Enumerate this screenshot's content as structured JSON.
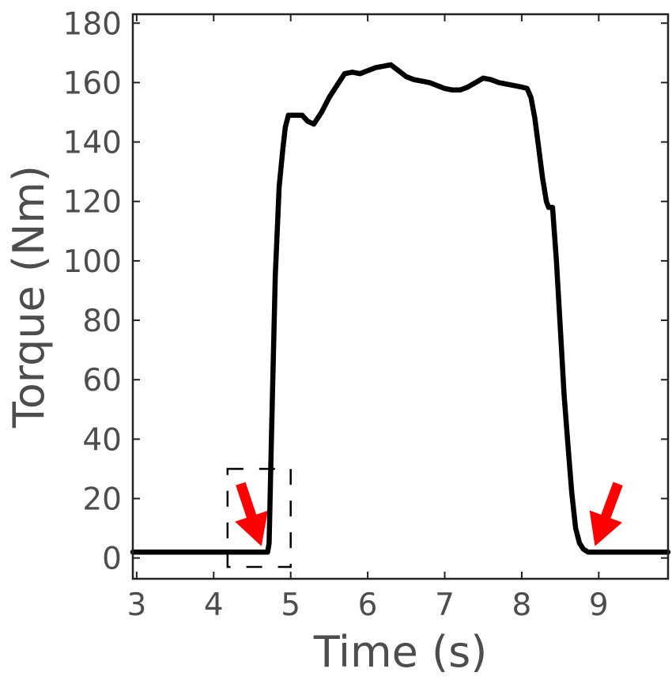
{
  "chart_data": {
    "type": "line",
    "title": "",
    "xlabel": "Time (s)",
    "ylabel": "Torque (Nm)",
    "xlim": [
      2.95,
      9.9
    ],
    "ylim": [
      -7,
      183
    ],
    "x_ticks": [
      3,
      4,
      5,
      6,
      7,
      8,
      9
    ],
    "y_ticks": [
      0,
      20,
      40,
      60,
      80,
      100,
      120,
      140,
      160,
      180
    ],
    "grid": false,
    "legend": "none",
    "series": [
      {
        "color": "#000000",
        "points": [
          [
            2.95,
            2
          ],
          [
            3.5,
            2
          ],
          [
            4.0,
            2
          ],
          [
            4.4,
            2
          ],
          [
            4.6,
            2
          ],
          [
            4.7,
            2
          ],
          [
            4.72,
            5
          ],
          [
            4.75,
            40
          ],
          [
            4.8,
            95
          ],
          [
            4.85,
            125
          ],
          [
            4.9,
            138
          ],
          [
            4.93,
            145
          ],
          [
            4.97,
            149
          ],
          [
            5.05,
            149
          ],
          [
            5.15,
            149
          ],
          [
            5.22,
            147
          ],
          [
            5.3,
            146
          ],
          [
            5.4,
            150
          ],
          [
            5.5,
            155
          ],
          [
            5.6,
            159
          ],
          [
            5.7,
            163
          ],
          [
            5.8,
            163.5
          ],
          [
            5.9,
            163
          ],
          [
            6.0,
            164
          ],
          [
            6.1,
            165
          ],
          [
            6.2,
            165.5
          ],
          [
            6.3,
            166
          ],
          [
            6.4,
            164
          ],
          [
            6.5,
            162
          ],
          [
            6.6,
            161
          ],
          [
            6.7,
            160.5
          ],
          [
            6.8,
            160
          ],
          [
            6.9,
            159
          ],
          [
            7.0,
            158
          ],
          [
            7.1,
            157.5
          ],
          [
            7.2,
            157.5
          ],
          [
            7.3,
            158.5
          ],
          [
            7.4,
            160
          ],
          [
            7.5,
            161.5
          ],
          [
            7.6,
            161
          ],
          [
            7.7,
            160
          ],
          [
            7.8,
            159.5
          ],
          [
            7.9,
            159
          ],
          [
            8.0,
            158.5
          ],
          [
            8.07,
            158
          ],
          [
            8.12,
            155
          ],
          [
            8.17,
            148
          ],
          [
            8.22,
            138
          ],
          [
            8.27,
            128
          ],
          [
            8.32,
            120
          ],
          [
            8.35,
            118
          ],
          [
            8.4,
            118
          ],
          [
            8.45,
            100
          ],
          [
            8.5,
            78
          ],
          [
            8.55,
            55
          ],
          [
            8.6,
            38
          ],
          [
            8.65,
            22
          ],
          [
            8.7,
            10
          ],
          [
            8.75,
            5
          ],
          [
            8.8,
            3
          ],
          [
            8.86,
            2
          ],
          [
            9.0,
            2
          ],
          [
            9.2,
            2
          ],
          [
            9.5,
            2
          ],
          [
            9.9,
            2
          ]
        ]
      }
    ],
    "annotations": [
      {
        "type": "arrow",
        "color": "#ff0000",
        "from": [
          4.35,
          25
        ],
        "to": [
          4.62,
          4
        ]
      },
      {
        "type": "arrow",
        "color": "#ff0000",
        "from": [
          9.25,
          25
        ],
        "to": [
          8.95,
          4
        ]
      },
      {
        "type": "dashed-box",
        "color": "#000000",
        "x_range": [
          4.18,
          5.0
        ],
        "y_range": [
          -3,
          30
        ]
      }
    ]
  }
}
